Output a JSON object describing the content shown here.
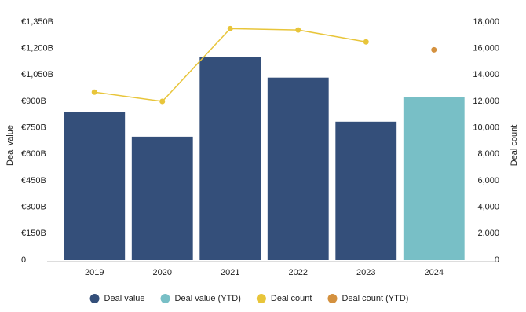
{
  "chart_data": {
    "type": "bar",
    "categories": [
      "2019",
      "2020",
      "2021",
      "2022",
      "2023",
      "2024"
    ],
    "y_label": "Deal value",
    "y2_label": "Deal count",
    "ylim": [
      0,
      1350
    ],
    "yticks": [
      0,
      {
        "value": 150,
        "label": "€150B"
      },
      {
        "value": 300,
        "label": "€300B"
      },
      {
        "value": 450,
        "label": "€450B"
      },
      {
        "value": 600,
        "label": "€600B"
      },
      {
        "value": 750,
        "label": "€750B"
      },
      {
        "value": 900,
        "label": "€900B"
      },
      {
        "value": 1050,
        "label": "€1,050B"
      },
      {
        "value": 1200,
        "label": "€1,200B"
      },
      {
        "value": 1350,
        "label": "€1,350B"
      }
    ],
    "y2lim": [
      0,
      18000
    ],
    "y2ticks": [
      0,
      {
        "value": 2000,
        "label": "2,000"
      },
      {
        "value": 4000,
        "label": "4,000"
      },
      {
        "value": 6000,
        "label": "6,000"
      },
      {
        "value": 8000,
        "label": "8,000"
      },
      {
        "value": 10000,
        "label": "10,000"
      },
      {
        "value": 12000,
        "label": "12,000"
      },
      {
        "value": 14000,
        "label": "14,000"
      },
      {
        "value": 16000,
        "label": "16,000"
      },
      {
        "value": 18000,
        "label": "18,000"
      }
    ],
    "grid": false,
    "legend": "bottom",
    "series": [
      {
        "name": "Deal value",
        "type": "bar",
        "color": "#344f7a",
        "values": [
          840,
          700,
          1150,
          1035,
          785,
          null
        ]
      },
      {
        "name": "Deal value (YTD)",
        "type": "bar",
        "color": "#78bfc6",
        "values": [
          null,
          null,
          null,
          null,
          null,
          925
        ]
      },
      {
        "name": "Deal count",
        "type": "line",
        "axis": "y2",
        "color": "#e8c53a",
        "values": [
          12700,
          12000,
          17500,
          17400,
          16500,
          null
        ]
      },
      {
        "name": "Deal count (YTD)",
        "type": "scatter",
        "axis": "y2",
        "color": "#d4913f",
        "values": [
          null,
          null,
          null,
          null,
          null,
          15900
        ]
      }
    ]
  }
}
